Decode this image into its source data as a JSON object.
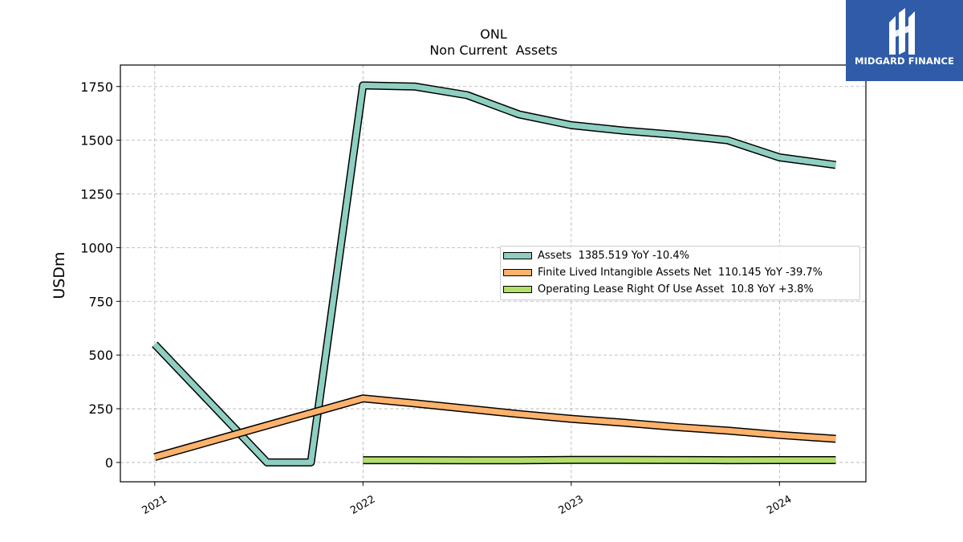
{
  "chart_data": {
    "type": "line",
    "title": "ONL",
    "subtitle": "Non Current  Assets",
    "ylabel": "USDm",
    "xlabel": "",
    "ylim": [
      -90,
      1850
    ],
    "xlim": [
      2020.835,
      2024.415
    ],
    "yticks": [
      0,
      250,
      500,
      750,
      1000,
      1250,
      1500,
      1750
    ],
    "xticks": [
      {
        "value": 2021.0,
        "label": "2021"
      },
      {
        "value": 2022.0,
        "label": "2022"
      },
      {
        "value": 2023.0,
        "label": "2023"
      },
      {
        "value": 2024.0,
        "label": "2024"
      }
    ],
    "grid": true,
    "legend_position": "right",
    "series": [
      {
        "name": "Assets",
        "legend_label": "Assets  1385.519 YoY -10.4%",
        "color": "#8ecfc2",
        "x": [
          2021.0,
          2021.54,
          2021.75,
          2022.0,
          2022.25,
          2022.5,
          2022.75,
          2023.0,
          2023.25,
          2023.5,
          2023.75,
          2024.0,
          2024.27
        ],
        "y": [
          550,
          0,
          0,
          1755,
          1750,
          1710,
          1620,
          1570,
          1545,
          1525,
          1500,
          1420,
          1385
        ]
      },
      {
        "name": "Finite Lived Intangible Assets Net",
        "legend_label": "Finite Lived Intangible Assets Net  110.145 YoY -39.7%",
        "color": "#fdb26c",
        "x": [
          2021.0,
          2022.0,
          2022.25,
          2022.5,
          2022.75,
          2023.0,
          2023.25,
          2023.5,
          2023.75,
          2024.0,
          2024.27
        ],
        "y": [
          25,
          298,
          275,
          250,
          225,
          203,
          185,
          165,
          148,
          128,
          110
        ]
      },
      {
        "name": "Operating Lease Right Of Use Asset",
        "legend_label": "Operating Lease Right Of Use Asset  10.8 YoY +3.8%",
        "color": "#b3de69",
        "x": [
          2022.0,
          2022.25,
          2022.5,
          2022.75,
          2023.0,
          2023.25,
          2023.5,
          2023.75,
          2024.0,
          2024.27
        ],
        "y": [
          10.4,
          10.4,
          10,
          10,
          11.5,
          11.5,
          11.2,
          10.5,
          11,
          10.8
        ]
      }
    ]
  },
  "watermark": {
    "text": "MIDGARD FINANCE",
    "bg_color": "#2f5ba8"
  }
}
